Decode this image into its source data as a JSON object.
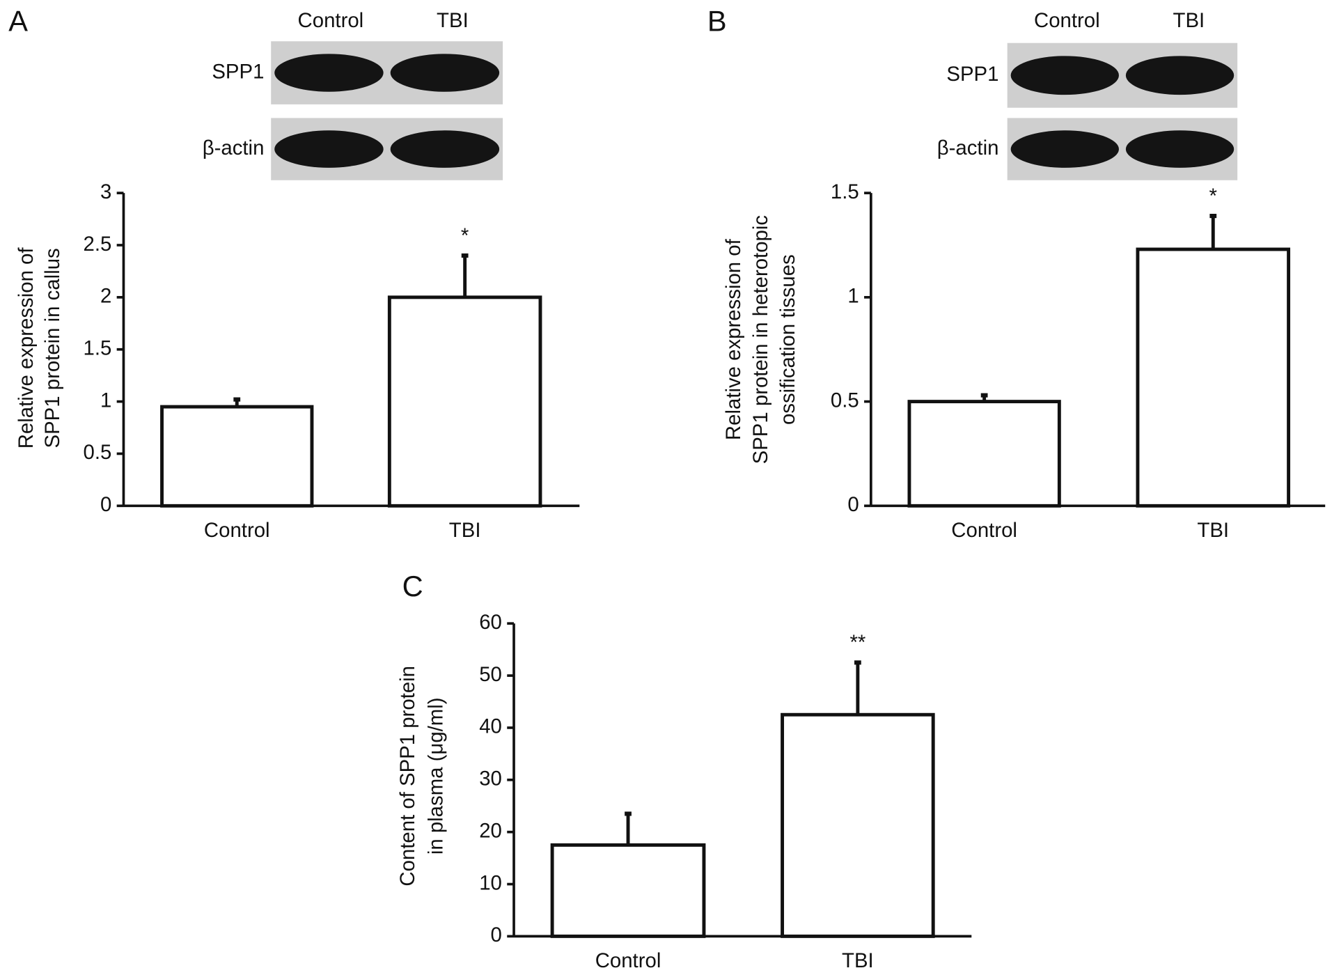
{
  "chart_data": [
    {
      "type": "bar",
      "panel": "A",
      "blot": {
        "lanes": [
          "Control",
          "TBI"
        ],
        "rows": [
          "SPP1",
          "β-actin"
        ]
      },
      "ylabel": [
        "Relative expression of",
        "SPP1 protein in callus"
      ],
      "categories": [
        "Control",
        "TBI"
      ],
      "values": [
        0.95,
        2.0
      ],
      "errors": [
        0.07,
        0.4
      ],
      "annotations": [
        null,
        "*"
      ],
      "color": "#ffffff",
      "ylim": [
        0,
        3
      ],
      "yticks": [
        0,
        0.5,
        1,
        1.5,
        2,
        2.5,
        3
      ]
    },
    {
      "type": "bar",
      "panel": "B",
      "blot": {
        "lanes": [
          "Control",
          "TBI"
        ],
        "rows": [
          "SPP1",
          "β-actin"
        ]
      },
      "ylabel": [
        "Relative expression of",
        "SPP1 protein in heterotopic",
        "ossification tissues"
      ],
      "categories": [
        "Control",
        "TBI"
      ],
      "values": [
        0.5,
        1.23
      ],
      "errors": [
        0.03,
        0.16
      ],
      "annotations": [
        null,
        "*"
      ],
      "color": "#ffffff",
      "ylim": [
        0,
        1.5
      ],
      "yticks": [
        0,
        0.5,
        1,
        1.5
      ]
    },
    {
      "type": "bar",
      "panel": "C",
      "ylabel": [
        "Content of SPP1 protein",
        "in plasma (μg/ml)"
      ],
      "categories": [
        "Control",
        "TBI"
      ],
      "values": [
        17.5,
        42.5
      ],
      "errors": [
        6,
        10
      ],
      "annotations": [
        null,
        "**"
      ],
      "color": "#ffffff",
      "ylim": [
        0,
        60
      ],
      "yticks": [
        0,
        10,
        20,
        30,
        40,
        50,
        60
      ]
    }
  ]
}
